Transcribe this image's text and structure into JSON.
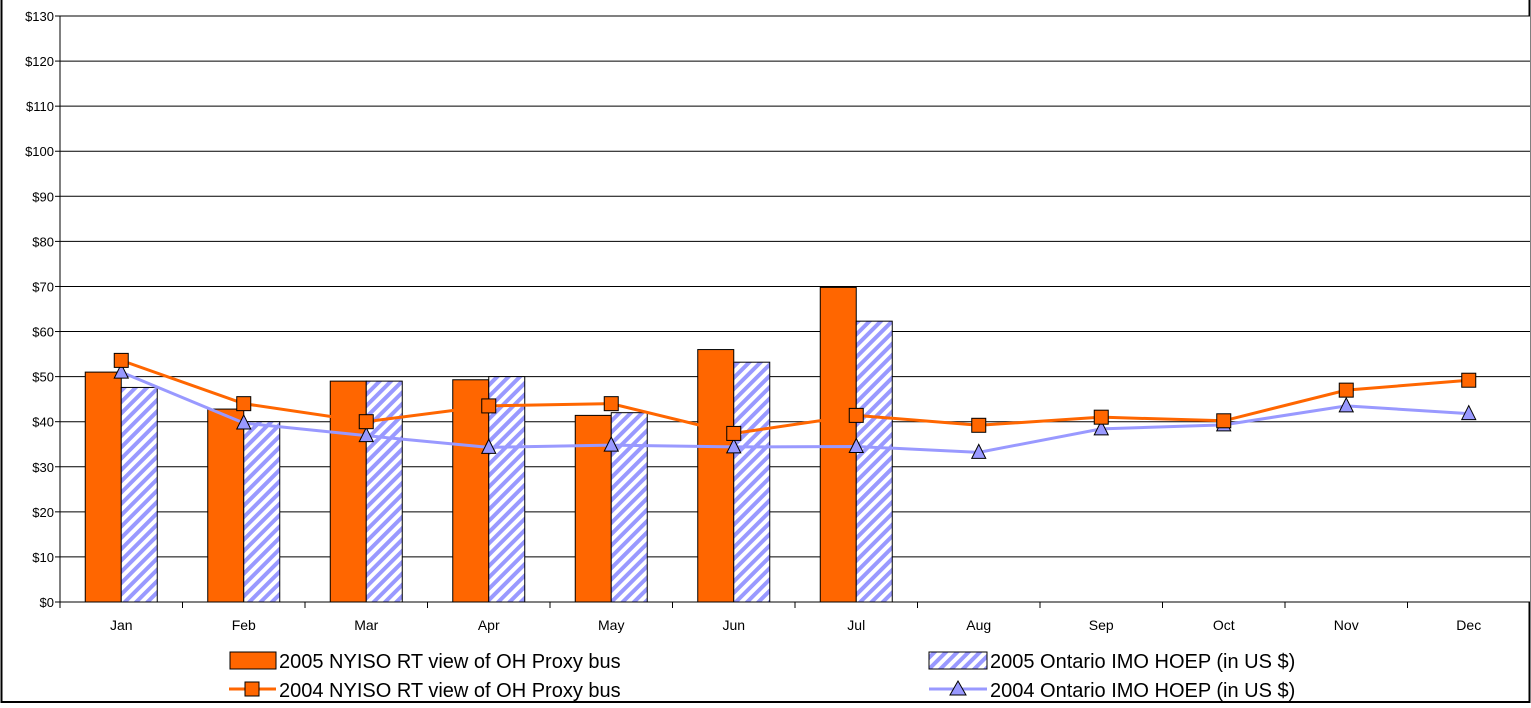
{
  "chart_data": {
    "type": "bar",
    "title": "",
    "xlabel": "",
    "ylabel": "",
    "ylim": [
      0,
      130
    ],
    "y_ticks": [
      0,
      10,
      20,
      30,
      40,
      50,
      60,
      70,
      80,
      90,
      100,
      110,
      120,
      130
    ],
    "y_tick_labels": [
      "$0",
      "$10",
      "$20",
      "$30",
      "$40",
      "$50",
      "$60",
      "$70",
      "$80",
      "$90",
      "$100",
      "$110",
      "$120",
      "$130"
    ],
    "categories": [
      "Jan",
      "Feb",
      "Mar",
      "Apr",
      "May",
      "Jun",
      "Jul",
      "Aug",
      "Sep",
      "Oct",
      "Nov",
      "Dec"
    ],
    "grid": "horizontal",
    "legend_position": "bottom",
    "colors": {
      "orange": "#FF6600",
      "lavender": "#9999FF",
      "hatch_bg": "#ffffff",
      "grid": "#000000"
    },
    "series": [
      {
        "name": "2005 NYISO RT view of OH Proxy bus",
        "kind": "bar",
        "style": "solid-orange",
        "values": [
          51,
          42.8,
          49,
          49.3,
          41.4,
          56,
          69.8,
          null,
          null,
          null,
          null,
          null
        ]
      },
      {
        "name": "2005 Ontario IMO HOEP (in US $)",
        "kind": "bar",
        "style": "hatched-lavender",
        "values": [
          47.6,
          40,
          49,
          50,
          42,
          53.2,
          62.3,
          null,
          null,
          null,
          null,
          null
        ]
      },
      {
        "name": "2004 NYISO RT view of OH Proxy bus",
        "kind": "line",
        "marker": "square",
        "style": "orange",
        "values": [
          53.6,
          44,
          40,
          43.5,
          44,
          37.4,
          41.4,
          39.2,
          41,
          40.2,
          47,
          49.2
        ]
      },
      {
        "name": "2004 Ontario IMO HOEP (in US $)",
        "kind": "line",
        "marker": "triangle",
        "style": "lavender",
        "values": [
          51,
          39.7,
          36.9,
          34.3,
          34.8,
          34.4,
          34.5,
          33.2,
          38.4,
          39.3,
          43.5,
          41.8
        ]
      }
    ]
  }
}
